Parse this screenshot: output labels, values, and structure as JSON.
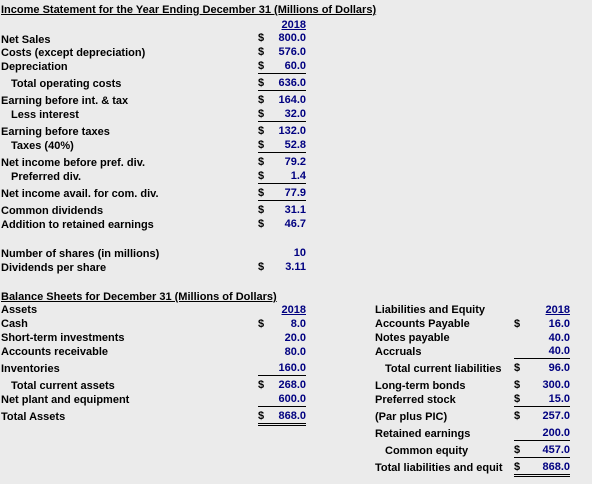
{
  "income": {
    "title": "Income Statement for the Year Ending December 31 (Millions of Dollars)",
    "year": "2018",
    "rows": [
      {
        "label": "Net Sales",
        "dollar": "$",
        "value": "800.0"
      },
      {
        "label": "Costs (except depreciation)",
        "dollar": "$",
        "value": "576.0"
      },
      {
        "label": "Depreciation",
        "dollar": "$",
        "value": "60.0"
      },
      {
        "label": "Total operating costs",
        "dollar": "$",
        "value": "636.0"
      },
      {
        "label": "Earning before int. & tax",
        "dollar": "$",
        "value": "164.0"
      },
      {
        "label": "Less interest",
        "dollar": "$",
        "value": "32.0"
      },
      {
        "label": "Earning before taxes",
        "dollar": "$",
        "value": "132.0"
      },
      {
        "label": "Taxes (40%)",
        "dollar": "$",
        "value": "52.8"
      },
      {
        "label": "Net income before pref. div.",
        "dollar": "$",
        "value": "79.2"
      },
      {
        "label": "Preferred div.",
        "dollar": "$",
        "value": "1.4"
      },
      {
        "label": "Net income avail. for com. div.",
        "dollar": "$",
        "value": "77.9"
      },
      {
        "label": "Common dividends",
        "dollar": "$",
        "value": "31.1"
      },
      {
        "label": "Addition to retained earnings",
        "dollar": "$",
        "value": "46.7"
      }
    ],
    "shares_label": "Number of shares (in millions)",
    "shares_value": "10",
    "dps_label": "Dividends per share",
    "dps_dollar": "$",
    "dps_value": "3.11"
  },
  "balance": {
    "title": "Balance Sheets for December 31 (Millions of Dollars)",
    "assets_header": "Assets",
    "assets_year": "2018",
    "assets": [
      {
        "label": "Cash",
        "dollar": "$",
        "value": "8.0"
      },
      {
        "label": "Short-term investments",
        "dollar": "",
        "value": "20.0"
      },
      {
        "label": "Accounts receivable",
        "dollar": "",
        "value": "80.0"
      },
      {
        "label": "Inventories",
        "dollar": "",
        "value": "160.0"
      },
      {
        "label": "Total current assets",
        "dollar": "$",
        "value": "268.0"
      },
      {
        "label": "Net plant and equipment",
        "dollar": "",
        "value": "600.0"
      },
      {
        "label": "Total Assets",
        "dollar": "$",
        "value": "868.0"
      }
    ],
    "liab_header": "Liabilities and Equity",
    "liab_year": "2018",
    "liabilities": [
      {
        "label": "Accounts Payable",
        "dollar": "$",
        "value": "16.0"
      },
      {
        "label": "Notes payable",
        "dollar": "",
        "value": "40.0"
      },
      {
        "label": "Accruals",
        "dollar": "",
        "value": "40.0"
      },
      {
        "label": "Total current liabilities",
        "dollar": "$",
        "value": "96.0"
      },
      {
        "label": "Long-term bonds",
        "dollar": "$",
        "value": "300.0"
      },
      {
        "label": "Preferred stock",
        "dollar": "$",
        "value": "15.0"
      },
      {
        "label": "(Par plus PIC)",
        "dollar": "$",
        "value": "257.0"
      },
      {
        "label": "Retained earnings",
        "dollar": "",
        "value": "200.0"
      },
      {
        "label": "Common equity",
        "dollar": "$",
        "value": "457.0"
      },
      {
        "label": "Total liabilities and equit",
        "dollar": "$",
        "value": "868.0"
      }
    ]
  }
}
